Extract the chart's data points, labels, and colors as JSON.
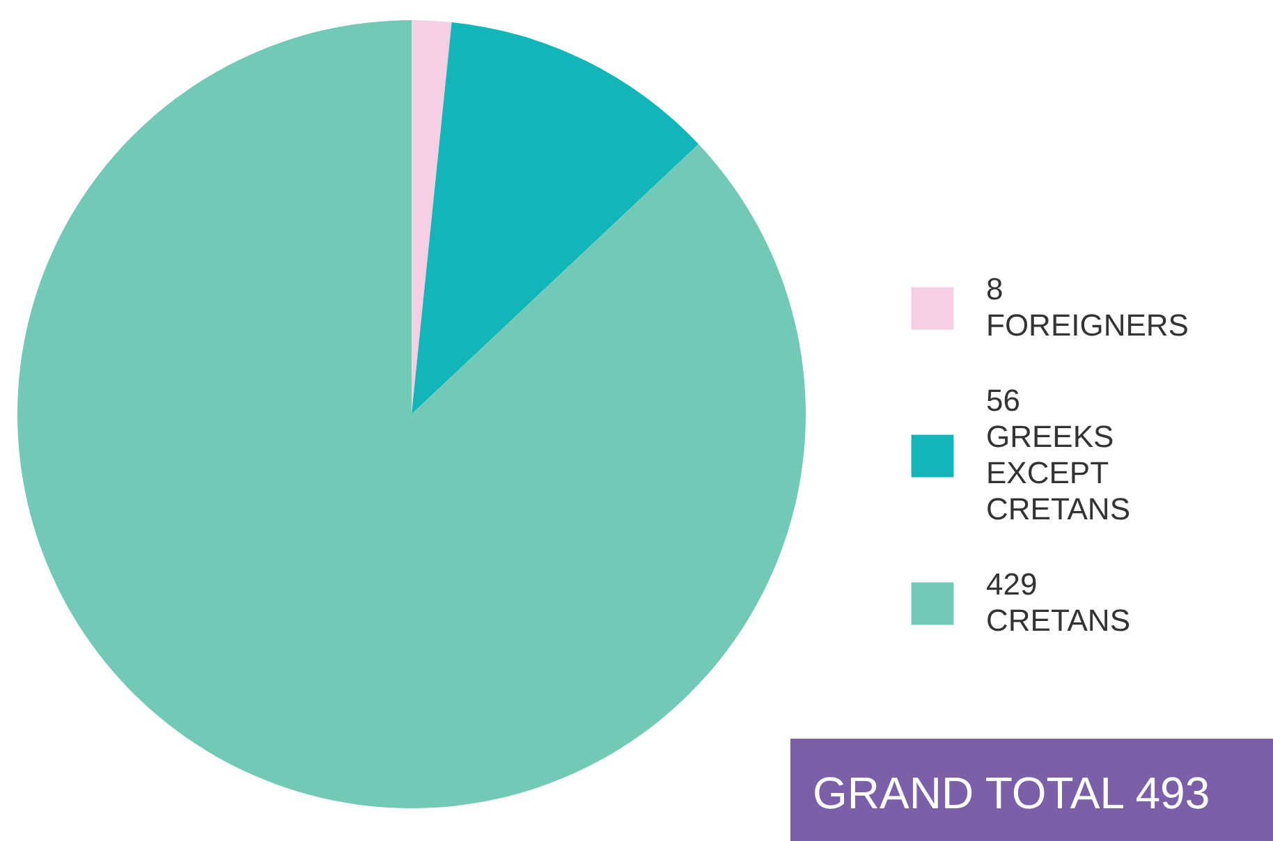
{
  "chart_data": {
    "type": "pie",
    "categories": [
      "FOREIGNERS",
      "GREEKS EXCEPT CRETANS",
      "CRETANS"
    ],
    "values": [
      8,
      56,
      429
    ],
    "colors": [
      "#f6d0e2",
      "#12b5b8",
      "#72c9b5"
    ],
    "value_labels": [
      "8",
      "56",
      "429"
    ],
    "legend": "right",
    "annotations": [
      "GRAND TOTAL 493"
    ]
  }
}
